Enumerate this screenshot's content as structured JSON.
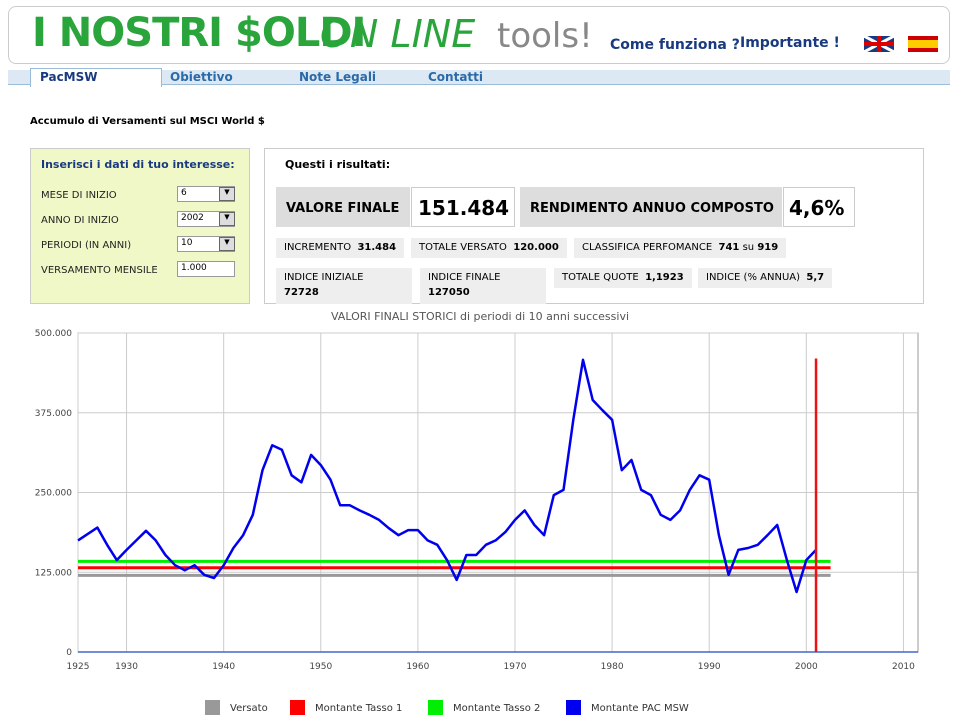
{
  "header": {
    "logo_bold": "I NOSTRI $OLDI",
    "logo_italic": "ON LINE",
    "logo_tools": "tools!",
    "links": [
      "Come funziona ?",
      "Importante !"
    ]
  },
  "tabs": [
    "PacMSW",
    "Obiettivo",
    "Note Legali",
    "Contatti"
  ],
  "page_title": "Accumulo di Versamenti sul MSCI World $",
  "form": {
    "title": "Inserisci i dati di tuo interesse:",
    "fields": [
      {
        "label": "MESE DI INIZIO",
        "value": "6"
      },
      {
        "label": "ANNO DI INIZIO",
        "value": "2002"
      },
      {
        "label": "PERIODI (IN ANNI)",
        "value": "10"
      },
      {
        "label": "VERSAMENTO MENSILE",
        "value": "1.000"
      }
    ]
  },
  "results": {
    "title": "Questi i risultati:",
    "main": [
      {
        "label": "VALORE FINALE",
        "value": "151.484"
      },
      {
        "label": "RENDIMENTO ANNUO COMPOSTO",
        "value": "4,6%"
      }
    ],
    "row1": [
      {
        "label": "INCREMENTO",
        "value": "31.484"
      },
      {
        "label": "TOTALE VERSATO",
        "value": "120.000"
      },
      {
        "label": "CLASSIFICA PERFOMANCE",
        "value": "741",
        "sep": "su",
        "total": "919"
      }
    ],
    "row2": [
      {
        "label": "INDICE INIZIALE",
        "value": "72728"
      },
      {
        "label": "INDICE FINALE",
        "value": "127050"
      },
      {
        "label": "TOTALE QUOTE",
        "value": "1,1923"
      },
      {
        "label": "INDICE (% ANNUA)",
        "value": "5,7"
      }
    ]
  },
  "chart_data": {
    "type": "line",
    "title": "VALORI FINALI STORICI di periodi di 10 anni successivi",
    "xlim": [
      1925,
      2011.5
    ],
    "xticks": [
      1925,
      1930,
      1940,
      1950,
      1960,
      1970,
      1980,
      1990,
      2000,
      2010
    ],
    "ylim": [
      0,
      500000
    ],
    "yticks": [
      0,
      {
        "value": 125000,
        "label": "125.000"
      },
      {
        "value": 250000,
        "label": "250.000"
      },
      {
        "value": 375000,
        "label": "375.000"
      },
      {
        "value": 500000,
        "label": "500.000"
      }
    ],
    "grid": true,
    "series": [
      {
        "name": "Versato",
        "color": "#999999",
        "x": [
          1925,
          2002.5
        ],
        "values": [
          120000,
          120000
        ]
      },
      {
        "name": "Montante Tasso 1",
        "color": "#ff0000",
        "x": [
          1925,
          2002.5
        ],
        "values": [
          132000,
          132000
        ]
      },
      {
        "name": "Montante Tasso 2",
        "color": "#00ee00",
        "x": [
          1925,
          2002.5
        ],
        "values": [
          142000,
          142000
        ]
      },
      {
        "name": "Montante PAC MSW",
        "color": "#0000ee",
        "x": [
          1925,
          1927,
          1928,
          1929,
          1930,
          1931,
          1932,
          1933,
          1934,
          1935,
          1936,
          1937,
          1938,
          1939,
          1940,
          1941,
          1942,
          1943,
          1944,
          1945,
          1946,
          1947,
          1948,
          1949,
          1950,
          1951,
          1952,
          1953,
          1954,
          1955,
          1956,
          1957,
          1958,
          1959,
          1960,
          1961,
          1962,
          1963,
          1964,
          1965,
          1966,
          1967,
          1968,
          1969,
          1970,
          1971,
          1972,
          1973,
          1974,
          1975,
          1976,
          1977,
          1978,
          1979,
          1980,
          1981,
          1982,
          1983,
          1984,
          1985,
          1986,
          1987,
          1988,
          1989,
          1990,
          1991,
          1992,
          1993,
          1994,
          1995,
          1996,
          1997,
          1998,
          1999,
          2000,
          2001
        ],
        "values": [
          175000,
          195000,
          168000,
          144000,
          160000,
          175000,
          190000,
          175000,
          152000,
          136000,
          128000,
          136000,
          121000,
          116000,
          136000,
          163000,
          183000,
          215000,
          285000,
          324000,
          317000,
          277000,
          266000,
          309000,
          293000,
          270000,
          230000,
          230000,
          222000,
          215000,
          207000,
          194000,
          183000,
          191000,
          191000,
          175000,
          168000,
          144000,
          113000,
          152000,
          152000,
          168000,
          175000,
          188000,
          207000,
          222000,
          199000,
          183000,
          246000,
          254000,
          364000,
          458000,
          395000,
          379000,
          364000,
          285000,
          301000,
          254000,
          246000,
          215000,
          207000,
          222000,
          254000,
          277000,
          270000,
          183000,
          121000,
          160000,
          163000,
          168000,
          183000,
          199000,
          144000,
          94000,
          144000,
          160000
        ]
      }
    ],
    "vline": {
      "x": 2001,
      "y": [
        0,
        460000
      ],
      "color": "#ee1111"
    }
  }
}
